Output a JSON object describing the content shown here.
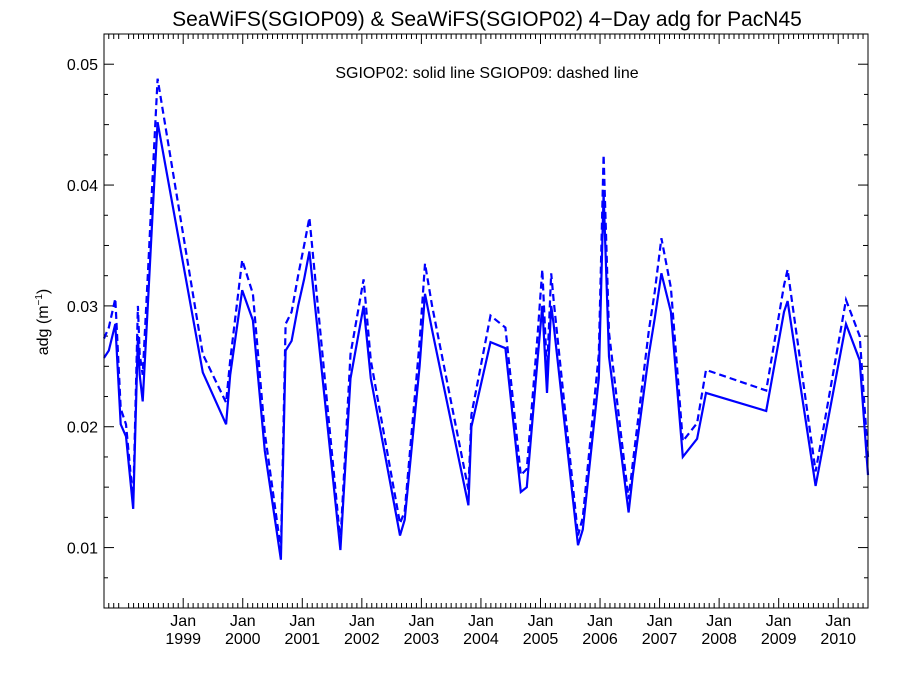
{
  "chart_data": {
    "type": "line",
    "title": "SeaWiFS(SGIOP09) & SeaWiFS(SGIOP02) 4−Day adg for PacN45",
    "ylabel": "adg (m",
    "ylabel_sup": "−1",
    "ylabel_close": ")",
    "annotation": "SGIOP02: solid line   SGIOP09: dashed line",
    "ylim": [
      0.005,
      0.0525
    ],
    "xlim": [
      1997.67,
      2010.5
    ],
    "yticks": [
      0.01,
      0.02,
      0.03,
      0.04,
      0.05
    ],
    "ytick_labels": [
      "0.01",
      "0.02",
      "0.03",
      "0.04",
      "0.05"
    ],
    "xticks": [
      {
        "x": 1999.0,
        "month": "Jan",
        "year": "1999"
      },
      {
        "x": 2000.0,
        "month": "Jan",
        "year": "2000"
      },
      {
        "x": 2001.0,
        "month": "Jan",
        "year": "2001"
      },
      {
        "x": 2002.0,
        "month": "Jan",
        "year": "2002"
      },
      {
        "x": 2003.0,
        "month": "Jan",
        "year": "2003"
      },
      {
        "x": 2004.0,
        "month": "Jan",
        "year": "2004"
      },
      {
        "x": 2005.0,
        "month": "Jan",
        "year": "2005"
      },
      {
        "x": 2006.0,
        "month": "Jan",
        "year": "2006"
      },
      {
        "x": 2007.0,
        "month": "Jan",
        "year": "2007"
      },
      {
        "x": 2008.0,
        "month": "Jan",
        "year": "2008"
      },
      {
        "x": 2009.0,
        "month": "Jan",
        "year": "2009"
      },
      {
        "x": 2010.0,
        "month": "Jan",
        "year": "2010"
      }
    ],
    "color": "#0000ff",
    "series": [
      {
        "name": "SGIOP02",
        "style": "solid",
        "points": [
          [
            1997.67,
            0.0257
          ],
          [
            1997.75,
            0.0263
          ],
          [
            1997.86,
            0.0285
          ],
          [
            1997.95,
            0.0202
          ],
          [
            1998.04,
            0.0192
          ],
          [
            1998.16,
            0.0132
          ],
          [
            1998.24,
            0.0275
          ],
          [
            1998.27,
            0.0243
          ],
          [
            1998.32,
            0.0221
          ],
          [
            1998.41,
            0.0305
          ],
          [
            1998.49,
            0.038
          ],
          [
            1998.57,
            0.0452
          ],
          [
            1999.33,
            0.0245
          ],
          [
            1999.72,
            0.0202
          ],
          [
            1999.79,
            0.0243
          ],
          [
            1999.99,
            0.0313
          ],
          [
            2000.17,
            0.0288
          ],
          [
            2000.37,
            0.018
          ],
          [
            2000.64,
            0.009
          ],
          [
            2000.72,
            0.0263
          ],
          [
            2000.82,
            0.0271
          ],
          [
            2000.93,
            0.03
          ],
          [
            2001.03,
            0.0322
          ],
          [
            2001.12,
            0.0345
          ],
          [
            2001.64,
            0.0098
          ],
          [
            2001.81,
            0.024
          ],
          [
            2002.03,
            0.03
          ],
          [
            2002.15,
            0.024
          ],
          [
            2002.64,
            0.011
          ],
          [
            2002.72,
            0.0123
          ],
          [
            2002.97,
            0.025
          ],
          [
            2003.06,
            0.031
          ],
          [
            2003.18,
            0.028
          ],
          [
            2003.79,
            0.0135
          ],
          [
            2003.84,
            0.02
          ],
          [
            2004.16,
            0.027
          ],
          [
            2004.41,
            0.0265
          ],
          [
            2004.67,
            0.0146
          ],
          [
            2004.77,
            0.015
          ],
          [
            2004.95,
            0.0255
          ],
          [
            2005.03,
            0.03
          ],
          [
            2005.11,
            0.0228
          ],
          [
            2005.18,
            0.03
          ],
          [
            2005.22,
            0.0285
          ],
          [
            2005.63,
            0.0102
          ],
          [
            2005.71,
            0.0115
          ],
          [
            2005.98,
            0.024
          ],
          [
            2006.06,
            0.0393
          ],
          [
            2006.15,
            0.0258
          ],
          [
            2006.48,
            0.0129
          ],
          [
            2006.55,
            0.016
          ],
          [
            2006.82,
            0.026
          ],
          [
            2006.92,
            0.029
          ],
          [
            2007.03,
            0.0327
          ],
          [
            2007.19,
            0.0295
          ],
          [
            2007.39,
            0.0175
          ],
          [
            2007.63,
            0.019
          ],
          [
            2007.78,
            0.0228
          ],
          [
            2008.79,
            0.0213
          ],
          [
            2009.09,
            0.0295
          ],
          [
            2009.15,
            0.0304
          ],
          [
            2009.62,
            0.0151
          ],
          [
            2009.75,
            0.0185
          ],
          [
            2010.13,
            0.0285
          ],
          [
            2010.36,
            0.0255
          ],
          [
            2010.5,
            0.016
          ]
        ]
      },
      {
        "name": "SGIOP09",
        "style": "dashed",
        "points": [
          [
            1997.67,
            0.0273
          ],
          [
            1997.75,
            0.0282
          ],
          [
            1997.86,
            0.0306
          ],
          [
            1997.95,
            0.0215
          ],
          [
            1998.04,
            0.0202
          ],
          [
            1998.16,
            0.0138
          ],
          [
            1998.24,
            0.03
          ],
          [
            1998.27,
            0.026
          ],
          [
            1998.32,
            0.0243
          ],
          [
            1998.41,
            0.033
          ],
          [
            1998.49,
            0.041
          ],
          [
            1998.57,
            0.0488
          ],
          [
            1999.33,
            0.026
          ],
          [
            1999.72,
            0.022
          ],
          [
            1999.79,
            0.0255
          ],
          [
            1999.99,
            0.0338
          ],
          [
            2000.17,
            0.031
          ],
          [
            2000.37,
            0.0195
          ],
          [
            2000.64,
            0.0098
          ],
          [
            2000.72,
            0.0285
          ],
          [
            2000.82,
            0.0295
          ],
          [
            2000.93,
            0.0325
          ],
          [
            2001.03,
            0.035
          ],
          [
            2001.12,
            0.0373
          ],
          [
            2001.64,
            0.0105
          ],
          [
            2001.81,
            0.026
          ],
          [
            2002.03,
            0.0322
          ],
          [
            2002.15,
            0.0255
          ],
          [
            2002.64,
            0.012
          ],
          [
            2002.72,
            0.013
          ],
          [
            2002.97,
            0.027
          ],
          [
            2003.06,
            0.0335
          ],
          [
            2003.18,
            0.03
          ],
          [
            2003.79,
            0.0148
          ],
          [
            2003.84,
            0.021
          ],
          [
            2004.16,
            0.0292
          ],
          [
            2004.41,
            0.0282
          ],
          [
            2004.67,
            0.016
          ],
          [
            2004.77,
            0.0165
          ],
          [
            2004.95,
            0.0275
          ],
          [
            2005.03,
            0.033
          ],
          [
            2005.11,
            0.0245
          ],
          [
            2005.18,
            0.0327
          ],
          [
            2005.22,
            0.0305
          ],
          [
            2005.63,
            0.011
          ],
          [
            2005.71,
            0.0125
          ],
          [
            2005.98,
            0.026
          ],
          [
            2006.06,
            0.0425
          ],
          [
            2006.15,
            0.0278
          ],
          [
            2006.48,
            0.014
          ],
          [
            2006.55,
            0.017
          ],
          [
            2006.82,
            0.028
          ],
          [
            2006.92,
            0.0312
          ],
          [
            2007.03,
            0.0356
          ],
          [
            2007.19,
            0.0315
          ],
          [
            2007.39,
            0.0188
          ],
          [
            2007.63,
            0.0203
          ],
          [
            2007.78,
            0.0247
          ],
          [
            2008.79,
            0.023
          ],
          [
            2009.09,
            0.0317
          ],
          [
            2009.15,
            0.033
          ],
          [
            2009.62,
            0.0163
          ],
          [
            2009.75,
            0.0198
          ],
          [
            2010.13,
            0.0305
          ],
          [
            2010.36,
            0.0275
          ],
          [
            2010.5,
            0.0175
          ]
        ]
      }
    ]
  }
}
